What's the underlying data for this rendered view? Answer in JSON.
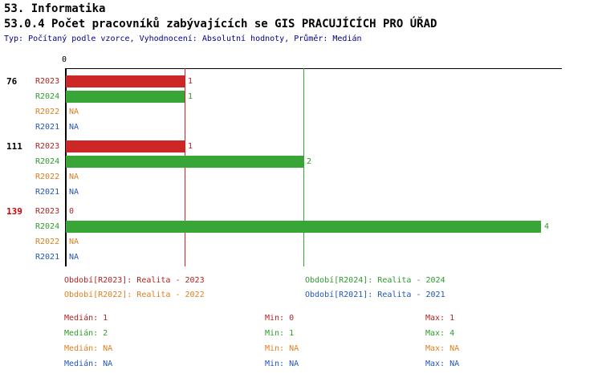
{
  "page": {
    "title": "53. Informatika",
    "subtitle": "53.0.4 Počet pracovníků zabývajících se GIS PRACUJÍCÍCH PRO ÚŘAD",
    "meta": "Typ: Počítaný podle vzorce, Vyhodnocení: Absolutní hodnoty, Průměr: Medián"
  },
  "colors": {
    "r2023": "#b22222",
    "r2024": "#2e9b2e",
    "r2022": "#e07d1e",
    "r2021": "#2255bb",
    "bar_r2023": "#cc2626",
    "bar_r2024": "#37a637",
    "meta_text": "#00008b",
    "highlight_group": "#cc0000",
    "axis": "#000000"
  },
  "chart_data": {
    "type": "bar",
    "orientation": "horizontal",
    "title": "53.0.4 Počet pracovníků zabývajících se GIS PRACUJÍCÍCH PRO ÚŘAD",
    "x_axis": {
      "origin_label": "0",
      "min": 0
    },
    "series_order": [
      "R2023",
      "R2024",
      "R2022",
      "R2021"
    ],
    "reference_lines": [
      {
        "series": "R2023",
        "value": 1,
        "meaning": "Medián R2023"
      },
      {
        "series": "R2024",
        "value": 2,
        "meaning": "Medián R2024"
      }
    ],
    "groups": [
      {
        "id": "76",
        "highlighted": false,
        "rows": [
          {
            "label": "R2023",
            "series": "R2023",
            "value": 1,
            "display": "1"
          },
          {
            "label": "R2024",
            "series": "R2024",
            "value": 1,
            "display": "1"
          },
          {
            "label": "R2022",
            "series": "R2022",
            "value": null,
            "display": "NA"
          },
          {
            "label": "R2021",
            "series": "R2021",
            "value": null,
            "display": "NA"
          }
        ]
      },
      {
        "id": "111",
        "highlighted": false,
        "rows": [
          {
            "label": "R2023",
            "series": "R2023",
            "value": 1,
            "display": "1"
          },
          {
            "label": "R2024",
            "series": "R2024",
            "value": 2,
            "display": "2"
          },
          {
            "label": "R2022",
            "series": "R2022",
            "value": null,
            "display": "NA"
          },
          {
            "label": "R2021",
            "series": "R2021",
            "value": null,
            "display": "NA"
          }
        ]
      },
      {
        "id": "139",
        "highlighted": true,
        "rows": [
          {
            "label": "R2023",
            "series": "R2023",
            "value": 0,
            "display": "0"
          },
          {
            "label": "R2024",
            "series": "R2024",
            "value": 4,
            "display": "4"
          },
          {
            "label": "R2022",
            "series": "R2022",
            "value": null,
            "display": "NA"
          },
          {
            "label": "R2021",
            "series": "R2021",
            "value": null,
            "display": "NA"
          }
        ]
      }
    ]
  },
  "legend": {
    "items": [
      {
        "series": "R2023",
        "text": "Období[R2023]: Realita - 2023"
      },
      {
        "series": "R2024",
        "text": "Období[R2024]: Realita - 2024"
      },
      {
        "series": "R2022",
        "text": "Období[R2022]: Realita - 2022"
      },
      {
        "series": "R2021",
        "text": "Období[R2021]: Realita - 2021"
      }
    ]
  },
  "stats": [
    {
      "series": "R2023",
      "median": "Medián: 1",
      "min": "Min: 0",
      "max": "Max: 1"
    },
    {
      "series": "R2024",
      "median": "Medián: 2",
      "min": "Min: 1",
      "max": "Max: 4"
    },
    {
      "series": "R2022",
      "median": "Medián: NA",
      "min": "Min: NA",
      "max": "Max: NA"
    },
    {
      "series": "R2021",
      "median": "Medián: NA",
      "min": "Min: NA",
      "max": "Max: NA"
    }
  ]
}
